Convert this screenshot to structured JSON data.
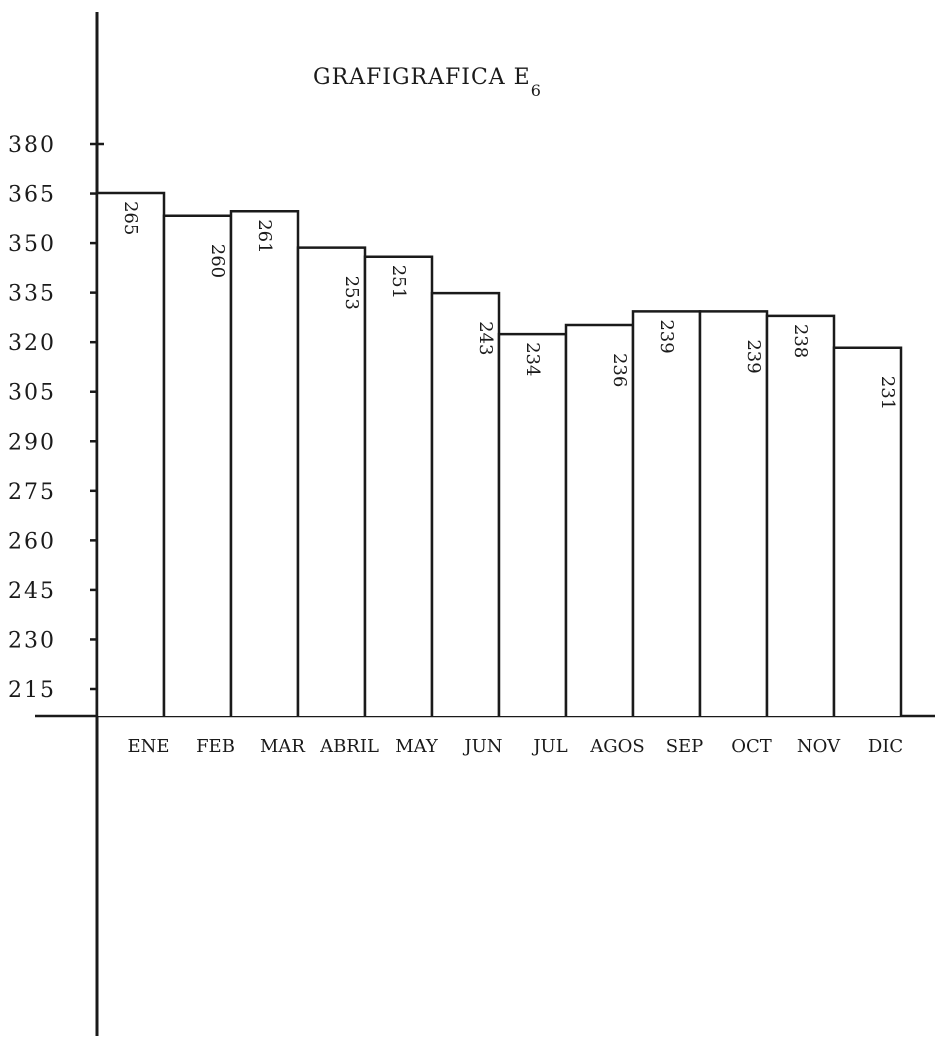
{
  "chart_data": {
    "type": "bar",
    "title": "GRAFIGRAFICA E",
    "title_subscript": "6",
    "categories": [
      "ENE",
      "FEB",
      "MAR",
      "ABRIL",
      "MAY",
      "JUN",
      "JUL",
      "AGOS",
      "SEP",
      "OCT",
      "NOV",
      "DIC"
    ],
    "values": [
      265,
      260,
      261,
      253,
      251,
      243,
      234,
      236,
      239,
      239,
      238,
      231
    ],
    "y_ticks": [
      215,
      230,
      245,
      260,
      275,
      290,
      305,
      320,
      335,
      350,
      365,
      380
    ],
    "ylim": [
      200,
      380
    ],
    "grid": false,
    "legend": "none",
    "bar_fill": "#ffffff",
    "line_color": "#1a1a1a"
  }
}
